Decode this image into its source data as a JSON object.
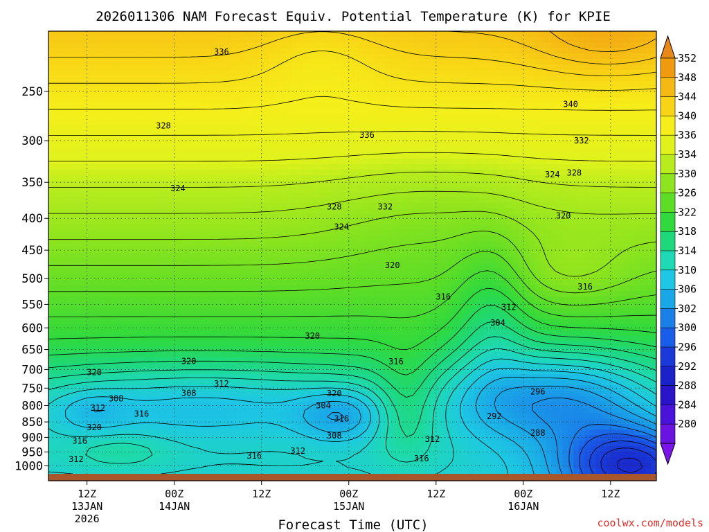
{
  "title": "2026011306 NAM Forecast Equiv. Potential Temperature (K) for KPIE",
  "xlabel": "Forecast Time (UTC)",
  "credit": "coolwx.com/models",
  "chart_data": {
    "type": "heatmap",
    "title": "2026011306 NAM Forecast Equiv. Potential Temperature (K) for KPIE",
    "xlabel": "Forecast Time (UTC)",
    "ylabel": "",
    "y_axis": {
      "scale": "log",
      "inverted": true,
      "ticks": [
        250,
        300,
        350,
        400,
        450,
        500,
        550,
        600,
        650,
        700,
        750,
        800,
        850,
        900,
        950,
        1000
      ]
    },
    "x_axis": {
      "ticks": [
        {
          "hour": 6,
          "label": [
            "12Z",
            "13JAN",
            "2026"
          ]
        },
        {
          "hour": 18,
          "label": [
            "00Z",
            "14JAN"
          ]
        },
        {
          "hour": 30,
          "label": [
            "12Z"
          ]
        },
        {
          "hour": 42,
          "label": [
            "00Z",
            "15JAN"
          ]
        },
        {
          "hour": 54,
          "label": [
            "12Z"
          ]
        },
        {
          "hour": 66,
          "label": [
            "00Z",
            "16JAN"
          ]
        },
        {
          "hour": 78,
          "label": [
            "12Z"
          ]
        }
      ]
    },
    "colorbar": {
      "unit": "K",
      "labels": [
        352,
        348,
        344,
        340,
        336,
        334,
        330,
        326,
        322,
        318,
        314,
        310,
        306,
        302,
        300,
        296,
        292,
        288,
        284,
        280
      ],
      "colors": [
        "#f09a10",
        "#f5b914",
        "#f8d416",
        "#f5ee1a",
        "#e0f21c",
        "#b8ec1e",
        "#8ee41e",
        "#5edd26",
        "#2fd93e",
        "#1ed87a",
        "#1ed9b4",
        "#1ec8e2",
        "#1aa7e8",
        "#1a80e8",
        "#1a5de8",
        "#1a3ad8",
        "#1a22c8",
        "#2a14c8",
        "#4a14d8",
        "#6a14e0"
      ],
      "top_color": "#e8881a",
      "bottom_color": "#7a14e8"
    },
    "contour_labels": [
      {
        "value": "336",
        "hour": 24.5,
        "p": 216
      },
      {
        "value": "328",
        "hour": 16.5,
        "p": 284
      },
      {
        "value": "336",
        "hour": 44.5,
        "p": 294
      },
      {
        "value": "340",
        "hour": 72.5,
        "p": 262
      },
      {
        "value": "332",
        "hour": 74,
        "p": 300
      },
      {
        "value": "324",
        "hour": 70,
        "p": 340
      },
      {
        "value": "328",
        "hour": 73,
        "p": 338
      },
      {
        "value": "324",
        "hour": 18.5,
        "p": 358
      },
      {
        "value": "328",
        "hour": 40,
        "p": 383
      },
      {
        "value": "332",
        "hour": 47,
        "p": 383
      },
      {
        "value": "324",
        "hour": 41,
        "p": 413
      },
      {
        "value": "320",
        "hour": 71.5,
        "p": 396
      },
      {
        "value": "320",
        "hour": 48,
        "p": 476
      },
      {
        "value": "316",
        "hour": 55,
        "p": 535
      },
      {
        "value": "316",
        "hour": 74.5,
        "p": 515
      },
      {
        "value": "312",
        "hour": 64,
        "p": 556
      },
      {
        "value": "304",
        "hour": 62.5,
        "p": 589
      },
      {
        "value": "320",
        "hour": 37,
        "p": 618
      },
      {
        "value": "320",
        "hour": 20,
        "p": 679
      },
      {
        "value": "320",
        "hour": 7,
        "p": 707
      },
      {
        "value": "316",
        "hour": 48.5,
        "p": 680
      },
      {
        "value": "312",
        "hour": 24.5,
        "p": 738
      },
      {
        "value": "308",
        "hour": 20,
        "p": 764
      },
      {
        "value": "320",
        "hour": 40,
        "p": 765
      },
      {
        "value": "296",
        "hour": 68,
        "p": 760
      },
      {
        "value": "308",
        "hour": 10,
        "p": 780
      },
      {
        "value": "304",
        "hour": 38.5,
        "p": 800
      },
      {
        "value": "312",
        "hour": 7.5,
        "p": 807
      },
      {
        "value": "316",
        "hour": 13.5,
        "p": 825
      },
      {
        "value": "316",
        "hour": 41,
        "p": 840
      },
      {
        "value": "292",
        "hour": 62,
        "p": 832
      },
      {
        "value": "320",
        "hour": 7,
        "p": 867
      },
      {
        "value": "308",
        "hour": 40,
        "p": 894
      },
      {
        "value": "288",
        "hour": 68,
        "p": 885
      },
      {
        "value": "316",
        "hour": 5,
        "p": 912
      },
      {
        "value": "312",
        "hour": 53.5,
        "p": 906
      },
      {
        "value": "312",
        "hour": 35,
        "p": 946
      },
      {
        "value": "316",
        "hour": 29,
        "p": 963
      },
      {
        "value": "316",
        "hour": 52,
        "p": 973
      },
      {
        "value": "312",
        "hour": 4.5,
        "p": 976
      }
    ]
  }
}
